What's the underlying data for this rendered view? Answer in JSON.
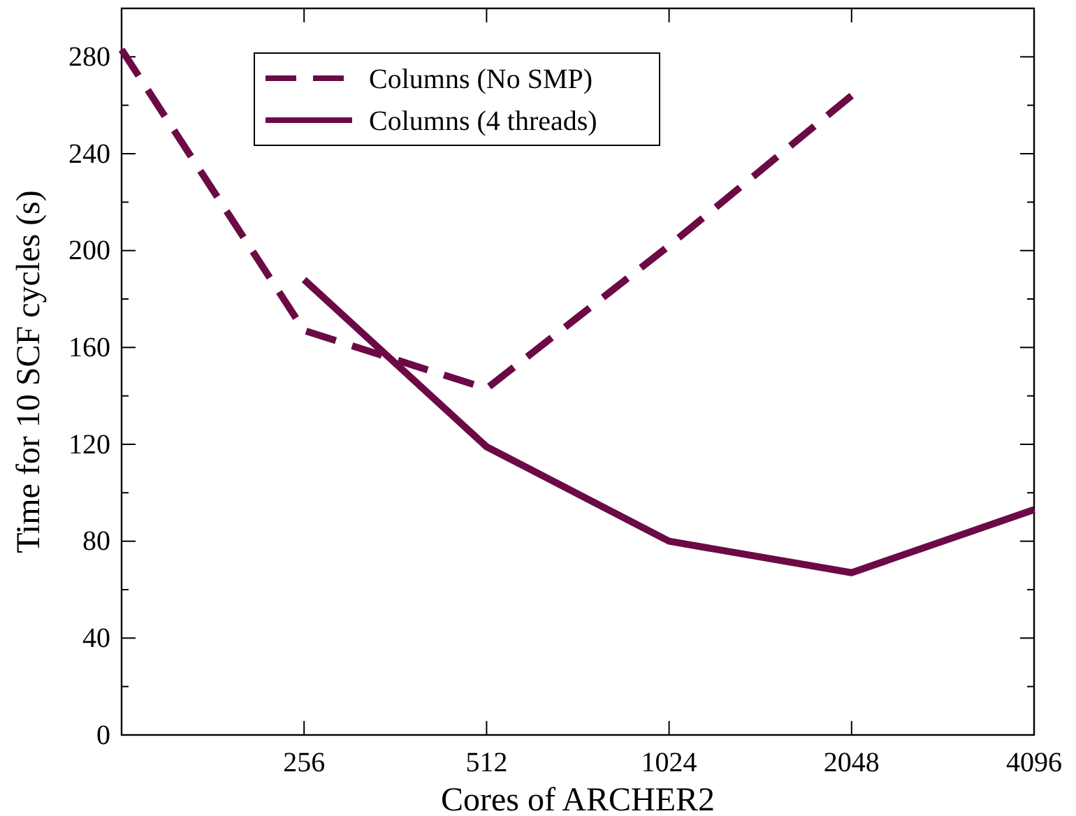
{
  "chart_data": {
    "type": "line",
    "xlabel": "Cores of ARCHER2",
    "ylabel": "Time for 10 SCF cycles (s)",
    "log": "x",
    "xlim": [
      128,
      4096
    ],
    "xticks": [
      256,
      512,
      1024,
      2048,
      4096
    ],
    "ylim": [
      0,
      300
    ],
    "yticks": [
      0,
      {
        "value": 20,
        "label": null
      },
      40,
      {
        "value": 60,
        "label": null
      },
      80,
      {
        "value": 100,
        "label": null
      },
      120,
      {
        "value": 140,
        "label": null
      },
      160,
      {
        "value": 180,
        "label": null
      },
      200,
      {
        "value": 220,
        "label": null
      },
      240,
      {
        "value": 260,
        "label": null
      },
      280
    ],
    "legend": "top left",
    "grid": false,
    "series": [
      {
        "name": "Columns (No SMP)",
        "color": "#6b0a45",
        "line_style": "dashed",
        "x": [
          128,
          256,
          512,
          1024,
          2048
        ],
        "values": [
          283,
          167,
          143,
          202,
          264
        ]
      },
      {
        "name": "Columns (4 threads)",
        "color": "#6b0a45",
        "line_style": "solid",
        "x": [
          256,
          512,
          1024,
          2048,
          4096
        ],
        "values": [
          188,
          119,
          80,
          67,
          93
        ]
      }
    ]
  }
}
